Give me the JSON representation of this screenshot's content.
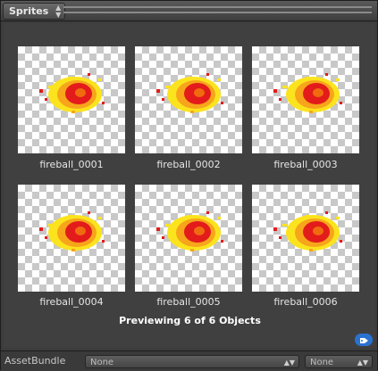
{
  "window": {
    "tab_title": "Sprites",
    "tab_arrows": "⬍"
  },
  "grid": {
    "items": [
      {
        "label": "fireball_0001"
      },
      {
        "label": "fireball_0002"
      },
      {
        "label": "fireball_0003"
      },
      {
        "label": "fireball_0004"
      },
      {
        "label": "fireball_0005"
      },
      {
        "label": "fireball_0006"
      }
    ]
  },
  "status": {
    "preview_text": "Previewing 6 of 6 Objects"
  },
  "footer": {
    "label": "AssetBundle",
    "bundle_value": "None",
    "variant_value": "None",
    "dropdown_arrows": "⬍"
  },
  "icons": {
    "tag": "tag-icon",
    "sprite": "fireball-sprite"
  },
  "colors": {
    "accent": "#2a72d0",
    "fire_red": "#e31b1b",
    "fire_orange": "#f7a51a",
    "fire_yellow": "#fbe31e"
  }
}
